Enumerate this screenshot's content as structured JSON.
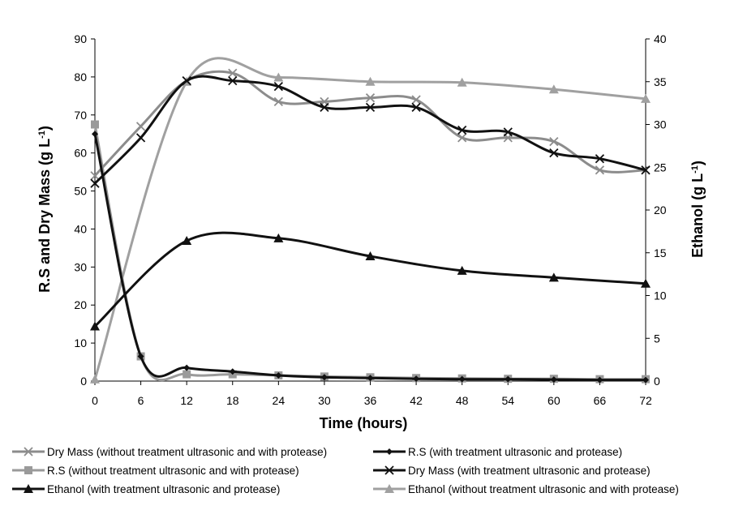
{
  "chart_data": {
    "type": "line",
    "title": "",
    "xlabel": "Time (hours)",
    "ylabel_left": "R.S and Dry Mass (g L⁻¹)",
    "ylabel_left_main": "R.S and Dry Mass (g L",
    "ylabel_left_sup": "-1",
    "ylabel_left_end": ")",
    "ylabel_right_main": "Ethanol  (g L",
    "ylabel_right_sup": "-1",
    "ylabel_right_end": ")",
    "x": [
      0,
      6,
      12,
      18,
      24,
      30,
      36,
      42,
      48,
      54,
      60,
      66,
      72
    ],
    "x_ticks": [
      "0",
      "6",
      "12",
      "18",
      "24",
      "30",
      "36",
      "42",
      "48",
      "54",
      "60",
      "66",
      "72"
    ],
    "ylim_left": [
      0,
      90
    ],
    "yticks_left": [
      "0",
      "10",
      "20",
      "30",
      "40",
      "50",
      "60",
      "70",
      "80",
      "90"
    ],
    "ylim_right": [
      0,
      40
    ],
    "yticks_right": [
      "0",
      "5",
      "10",
      "15",
      "20",
      "25",
      "30",
      "35",
      "40"
    ],
    "grid": false,
    "legend_position": "bottom",
    "series": [
      {
        "name": "Dry Mass (without treatment ultrasonic and  with protease)",
        "axis": "left",
        "color": "#8c8c8c",
        "marker": "x",
        "values": [
          54,
          67,
          79,
          81,
          73.5,
          73.5,
          74.5,
          74,
          64,
          64,
          63,
          55.5,
          55.5
        ]
      },
      {
        "name": "R.S  (with treatment ultrasonic and protease)",
        "axis": "left",
        "color": "#111111",
        "marker": "diamond",
        "values": [
          65,
          6.5,
          3.5,
          2.5,
          1.5,
          1,
          0.8,
          0.6,
          0.5,
          0.5,
          0.4,
          0.3,
          0.3
        ]
      },
      {
        "name": "R.S (without treatment ultrasonic and  with protease)",
        "axis": "left",
        "color": "#9a9a9a",
        "marker": "square",
        "values": [
          67.5,
          6.5,
          1.8,
          1.8,
          1.5,
          1.2,
          1,
          0.8,
          0.7,
          0.6,
          0.6,
          0.5,
          0.5
        ]
      },
      {
        "name": "Dry Mass  (with treatment ultrasonic and protease)",
        "axis": "left",
        "color": "#111111",
        "marker": "x",
        "values": [
          52,
          64,
          79,
          79,
          77.5,
          72,
          72,
          72,
          66,
          65.5,
          60,
          58.5,
          55.5
        ]
      },
      {
        "name": "Ethanol  (with treatment ultrasonic and   protease)",
        "axis": "right",
        "color": "#111111",
        "marker": "triangle",
        "values": [
          6.4,
          null,
          16.4,
          null,
          16.7,
          null,
          14.6,
          null,
          12.9,
          null,
          12.1,
          null,
          11.4
        ]
      },
      {
        "name": "Ethanol (without treatment ultrasonic and  with protease)",
        "axis": "right",
        "color": "#a0a0a0",
        "marker": "triangle",
        "values": [
          0.2,
          null,
          35,
          null,
          35.5,
          null,
          35,
          null,
          34.9,
          null,
          34.1,
          null,
          33
        ]
      }
    ]
  }
}
